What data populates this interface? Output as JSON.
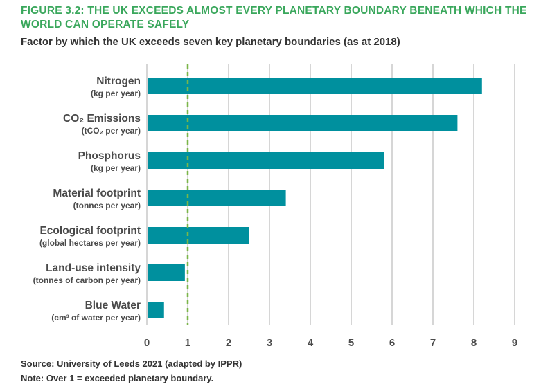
{
  "title": "FIGURE 3.2: THE UK EXCEEDS ALMOST EVERY PLANETARY BOUNDARY BENEATH WHICH THE WORLD CAN OPERATE SAFELY",
  "subtitle": "Factor by which the UK exceeds seven key planetary boundaries (as at 2018)",
  "source": "Source: University of Leeds 2021 (adapted by IPPR)",
  "note": "Note: Over 1 = exceeded planetary boundary.",
  "colors": {
    "bar": "#00909e",
    "title": "#3aa75c",
    "reference_line": "#7ab648",
    "grid": "#d6d6d6"
  },
  "chart_data": {
    "type": "bar",
    "orientation": "horizontal",
    "categories": [
      "Nitrogen",
      "CO₂ Emissions",
      "Phosphorus",
      "Material footprint",
      "Ecological footprint",
      "Land-use intensity",
      "Blue Water"
    ],
    "units": [
      "(kg per year)",
      "(tCO₂ per year)",
      "(kg per year)",
      "(tonnes per year)",
      "(global hectares per year)",
      "(tonnes of carbon per year)",
      "(cm³ of water per year)"
    ],
    "values": [
      8.2,
      7.6,
      5.8,
      3.4,
      2.5,
      0.93,
      0.42
    ],
    "xlim": [
      0,
      9
    ],
    "xticks": [
      "0",
      "1",
      "2",
      "3",
      "4",
      "5",
      "6",
      "7",
      "8",
      "9"
    ],
    "reference_line": 1,
    "grid": true,
    "xlabel": "",
    "ylabel": ""
  }
}
